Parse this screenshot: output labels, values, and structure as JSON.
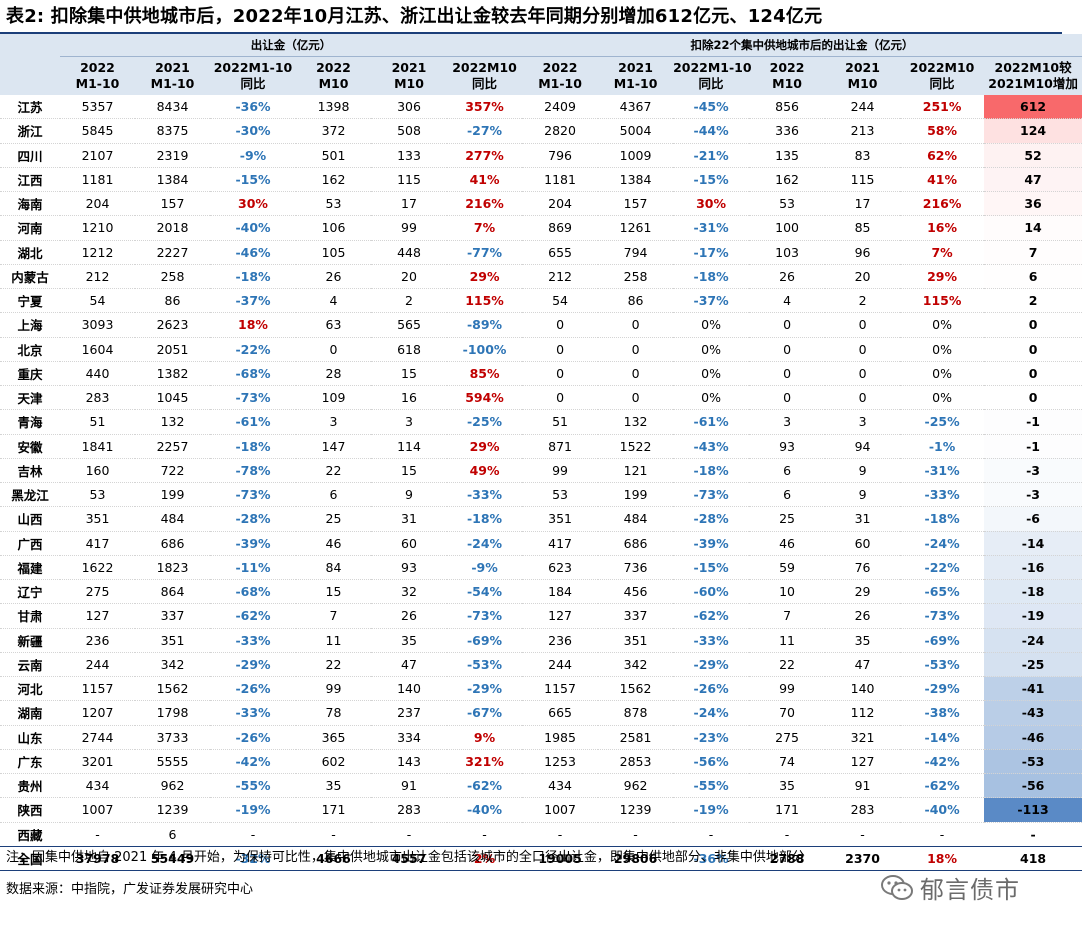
{
  "title": "表2:  扣除集中供地城市后，2022年10月江苏、浙江出让金较去年同期分别增加612亿元、124亿元",
  "header": {
    "group_left": "出让金（亿元）",
    "group_right": "扣除22个集中供地城市后的出让金（亿元）",
    "cols": [
      [
        "2022",
        "M1-10"
      ],
      [
        "2021",
        "M1-10"
      ],
      [
        "2022M1-10",
        "同比"
      ],
      [
        "2022",
        "M10"
      ],
      [
        "2021",
        "M10"
      ],
      [
        "2022M10",
        "同比"
      ],
      [
        "2022",
        "M1-10"
      ],
      [
        "2021",
        "M1-10"
      ],
      [
        "2022M1-10",
        "同比"
      ],
      [
        "2022",
        "M10"
      ],
      [
        "2021",
        "M10"
      ],
      [
        "2022M10",
        "同比"
      ],
      [
        "2022M10较",
        "2021M10增加"
      ]
    ]
  },
  "rows": [
    [
      "江苏",
      "5357",
      "8434",
      "-36%",
      "1398",
      "306",
      "357%",
      "2409",
      "4367",
      "-45%",
      "856",
      "244",
      "251%",
      "612"
    ],
    [
      "浙江",
      "5845",
      "8375",
      "-30%",
      "372",
      "508",
      "-27%",
      "2820",
      "5004",
      "-44%",
      "336",
      "213",
      "58%",
      "124"
    ],
    [
      "四川",
      "2107",
      "2319",
      "-9%",
      "501",
      "133",
      "277%",
      "796",
      "1009",
      "-21%",
      "135",
      "83",
      "62%",
      "52"
    ],
    [
      "江西",
      "1181",
      "1384",
      "-15%",
      "162",
      "115",
      "41%",
      "1181",
      "1384",
      "-15%",
      "162",
      "115",
      "41%",
      "47"
    ],
    [
      "海南",
      "204",
      "157",
      "30%",
      "53",
      "17",
      "216%",
      "204",
      "157",
      "30%",
      "53",
      "17",
      "216%",
      "36"
    ],
    [
      "河南",
      "1210",
      "2018",
      "-40%",
      "106",
      "99",
      "7%",
      "869",
      "1261",
      "-31%",
      "100",
      "85",
      "16%",
      "14"
    ],
    [
      "湖北",
      "1212",
      "2227",
      "-46%",
      "105",
      "448",
      "-77%",
      "655",
      "794",
      "-17%",
      "103",
      "96",
      "7%",
      "7"
    ],
    [
      "内蒙古",
      "212",
      "258",
      "-18%",
      "26",
      "20",
      "29%",
      "212",
      "258",
      "-18%",
      "26",
      "20",
      "29%",
      "6"
    ],
    [
      "宁夏",
      "54",
      "86",
      "-37%",
      "4",
      "2",
      "115%",
      "54",
      "86",
      "-37%",
      "4",
      "2",
      "115%",
      "2"
    ],
    [
      "上海",
      "3093",
      "2623",
      "18%",
      "63",
      "565",
      "-89%",
      "0",
      "0",
      "0%",
      "0",
      "0",
      "0%",
      "0"
    ],
    [
      "北京",
      "1604",
      "2051",
      "-22%",
      "0",
      "618",
      "-100%",
      "0",
      "0",
      "0%",
      "0",
      "0",
      "0%",
      "0"
    ],
    [
      "重庆",
      "440",
      "1382",
      "-68%",
      "28",
      "15",
      "85%",
      "0",
      "0",
      "0%",
      "0",
      "0",
      "0%",
      "0"
    ],
    [
      "天津",
      "283",
      "1045",
      "-73%",
      "109",
      "16",
      "594%",
      "0",
      "0",
      "0%",
      "0",
      "0",
      "0%",
      "0"
    ],
    [
      "青海",
      "51",
      "132",
      "-61%",
      "3",
      "3",
      "-25%",
      "51",
      "132",
      "-61%",
      "3",
      "3",
      "-25%",
      "-1"
    ],
    [
      "安徽",
      "1841",
      "2257",
      "-18%",
      "147",
      "114",
      "29%",
      "871",
      "1522",
      "-43%",
      "93",
      "94",
      "-1%",
      "-1"
    ],
    [
      "吉林",
      "160",
      "722",
      "-78%",
      "22",
      "15",
      "49%",
      "99",
      "121",
      "-18%",
      "6",
      "9",
      "-31%",
      "-3"
    ],
    [
      "黑龙江",
      "53",
      "199",
      "-73%",
      "6",
      "9",
      "-33%",
      "53",
      "199",
      "-73%",
      "6",
      "9",
      "-33%",
      "-3"
    ],
    [
      "山西",
      "351",
      "484",
      "-28%",
      "25",
      "31",
      "-18%",
      "351",
      "484",
      "-28%",
      "25",
      "31",
      "-18%",
      "-6"
    ],
    [
      "广西",
      "417",
      "686",
      "-39%",
      "46",
      "60",
      "-24%",
      "417",
      "686",
      "-39%",
      "46",
      "60",
      "-24%",
      "-14"
    ],
    [
      "福建",
      "1622",
      "1823",
      "-11%",
      "84",
      "93",
      "-9%",
      "623",
      "736",
      "-15%",
      "59",
      "76",
      "-22%",
      "-16"
    ],
    [
      "辽宁",
      "275",
      "864",
      "-68%",
      "15",
      "32",
      "-54%",
      "184",
      "456",
      "-60%",
      "10",
      "29",
      "-65%",
      "-18"
    ],
    [
      "甘肃",
      "127",
      "337",
      "-62%",
      "7",
      "26",
      "-73%",
      "127",
      "337",
      "-62%",
      "7",
      "26",
      "-73%",
      "-19"
    ],
    [
      "新疆",
      "236",
      "351",
      "-33%",
      "11",
      "35",
      "-69%",
      "236",
      "351",
      "-33%",
      "11",
      "35",
      "-69%",
      "-24"
    ],
    [
      "云南",
      "244",
      "342",
      "-29%",
      "22",
      "47",
      "-53%",
      "244",
      "342",
      "-29%",
      "22",
      "47",
      "-53%",
      "-25"
    ],
    [
      "河北",
      "1157",
      "1562",
      "-26%",
      "99",
      "140",
      "-29%",
      "1157",
      "1562",
      "-26%",
      "99",
      "140",
      "-29%",
      "-41"
    ],
    [
      "湖南",
      "1207",
      "1798",
      "-33%",
      "78",
      "237",
      "-67%",
      "665",
      "878",
      "-24%",
      "70",
      "112",
      "-38%",
      "-43"
    ],
    [
      "山东",
      "2744",
      "3733",
      "-26%",
      "365",
      "334",
      "9%",
      "1985",
      "2581",
      "-23%",
      "275",
      "321",
      "-14%",
      "-46"
    ],
    [
      "广东",
      "3201",
      "5555",
      "-42%",
      "602",
      "143",
      "321%",
      "1253",
      "2853",
      "-56%",
      "74",
      "127",
      "-42%",
      "-53"
    ],
    [
      "贵州",
      "434",
      "962",
      "-55%",
      "35",
      "91",
      "-62%",
      "434",
      "962",
      "-55%",
      "35",
      "91",
      "-62%",
      "-56"
    ],
    [
      "陕西",
      "1007",
      "1239",
      "-19%",
      "171",
      "283",
      "-40%",
      "1007",
      "1239",
      "-19%",
      "171",
      "283",
      "-40%",
      "-113"
    ],
    [
      "西藏",
      "-",
      "6",
      "-",
      "-",
      "-",
      "-",
      "-",
      "-",
      "-",
      "-",
      "-",
      "-",
      "-"
    ]
  ],
  "total": [
    "全国",
    "37978",
    "55449",
    "-32%",
    "4666",
    "4557",
    "2%",
    "19005",
    "29806",
    "-36%",
    "2788",
    "2370",
    "18%",
    "418"
  ],
  "colors": {
    "positive_text": "#c00000",
    "negative_text": "#2e75b6",
    "header_bg": "#dce6f1",
    "heat_positive": "#f8696b",
    "heat_negative": "#5a8ac6"
  },
  "note": "注：因集中供地自 2021 年 4 月开始，为保持可比性，集中供地城市出让金包括该城市的全口径出让金，即集中供地部分、非集中供地部分",
  "source": "数据来源：中指院，广发证券发展研究中心",
  "watermark": {
    "icon": "wechat-icon",
    "text": "郁言债市"
  }
}
